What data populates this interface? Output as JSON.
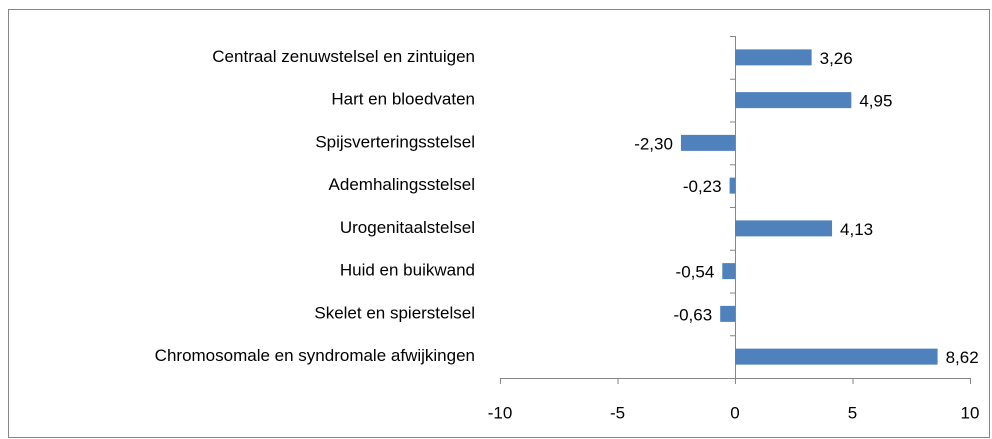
{
  "chart_data": {
    "type": "bar",
    "orientation": "horizontal",
    "categories": [
      "Centraal zenuwstelsel en zintuigen",
      "Hart en bloedvaten",
      "Spijsverteringsstelsel",
      "Ademhalingsstelsel",
      "Urogenitaalstelsel",
      "Huid en buikwand",
      "Skelet en spierstelsel",
      "Chromosomale en syndromale afwijkingen"
    ],
    "values": [
      3.26,
      4.95,
      -2.3,
      -0.23,
      4.13,
      -0.54,
      -0.63,
      8.62
    ],
    "value_labels": [
      "3,26",
      "4,95",
      "-2,30",
      "-0,23",
      "4,13",
      "-0,54",
      "-0,63",
      "8,62"
    ],
    "color": "#4f81bd",
    "xlim": [
      -10,
      10
    ],
    "xticks": [
      -10,
      -5,
      0,
      5,
      10
    ]
  }
}
